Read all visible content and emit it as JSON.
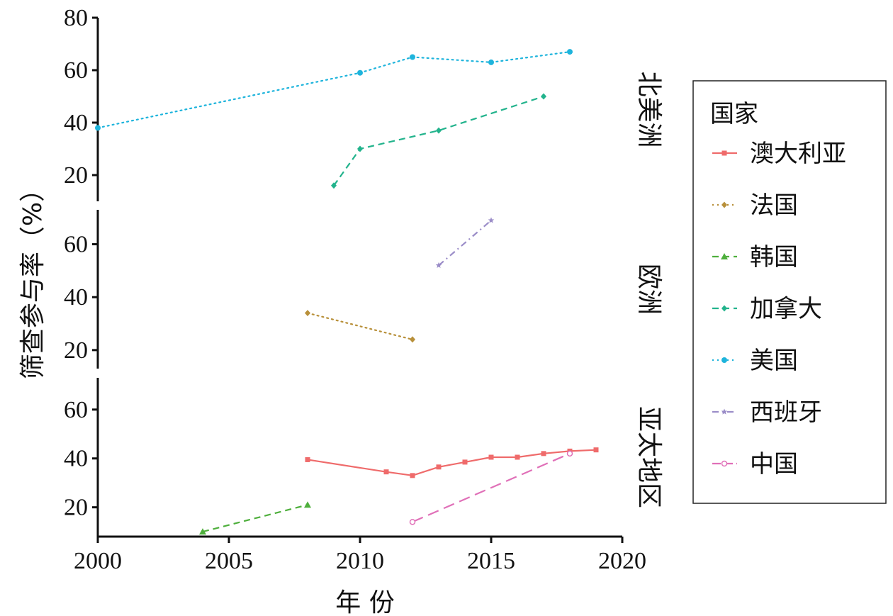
{
  "chart_data": {
    "type": "line",
    "xlabel": "年 份",
    "ylabel": "筛查参与率（%）",
    "x_range": [
      2000,
      2020
    ],
    "x_ticks": [
      2000,
      2005,
      2010,
      2015,
      2020
    ],
    "legend": {
      "title": "国家",
      "placement": "right",
      "entries": [
        "澳大利亚",
        "法国",
        "韩国",
        "加拿大",
        "美国",
        "西班牙",
        "中国"
      ]
    },
    "panels": [
      {
        "label": "北美洲",
        "ylim": [
          10,
          80
        ],
        "y_ticks": [
          20,
          40,
          60,
          80
        ],
        "series": [
          {
            "name": "美国",
            "color": "#1EB4DC",
            "dash": "dotted",
            "marker": "circle",
            "x": [
              2000,
              2010,
              2012,
              2015,
              2018
            ],
            "y": [
              38,
              59,
              65,
              63,
              67
            ]
          },
          {
            "name": "加拿大",
            "color": "#22B38C",
            "dash": "dashed",
            "marker": "diamond",
            "x": [
              2009,
              2010,
              2013,
              2017
            ],
            "y": [
              16,
              30,
              37,
              50
            ]
          }
        ]
      },
      {
        "label": "欧洲",
        "ylim": [
          13,
          73
        ],
        "y_ticks": [
          20,
          40,
          60
        ],
        "series": [
          {
            "name": "西班牙",
            "color": "#9B8DC8",
            "dash": "dashdot",
            "marker": "star",
            "x": [
              2013,
              2015
            ],
            "y": [
              52,
              69
            ]
          },
          {
            "name": "法国",
            "color": "#B8903A",
            "dash": "dotted",
            "marker": "diamond",
            "x": [
              2008,
              2012
            ],
            "y": [
              34,
              24
            ]
          }
        ]
      },
      {
        "label": "亚太地区",
        "ylim": [
          8,
          73
        ],
        "y_ticks": [
          20,
          40,
          60
        ],
        "series": [
          {
            "name": "澳大利亚",
            "color": "#EF6B6B",
            "dash": "solid",
            "marker": "square",
            "x": [
              2008,
              2011,
              2012,
              2013,
              2014,
              2015,
              2016,
              2017,
              2018,
              2019
            ],
            "y": [
              39.5,
              34.5,
              33,
              36.5,
              38.5,
              40.5,
              40.5,
              42,
              43,
              43.5
            ]
          },
          {
            "name": "韩国",
            "color": "#4EAF3C",
            "dash": "dashed",
            "marker": "triangle",
            "x": [
              2004,
              2008
            ],
            "y": [
              10,
              21
            ]
          },
          {
            "name": "中国",
            "color": "#E070B8",
            "dash": "longdash",
            "marker": "open-circle",
            "x": [
              2012,
              2018
            ],
            "y": [
              14,
              42
            ]
          }
        ]
      }
    ]
  }
}
